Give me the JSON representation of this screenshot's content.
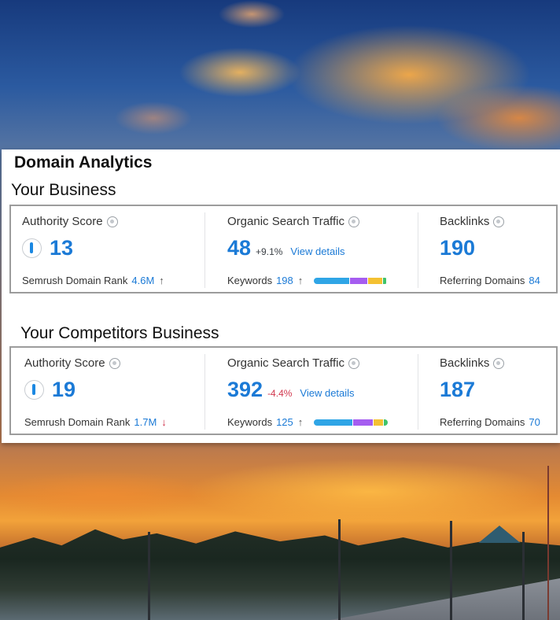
{
  "panel": {
    "title": "Domain Analytics"
  },
  "sections": [
    {
      "title": "Your Business",
      "authority": {
        "label": "Authority Score",
        "value": "13",
        "rank_label": "Semrush Domain Rank",
        "rank_value": "4.6M",
        "rank_trend": "up"
      },
      "organic": {
        "label": "Organic Search Traffic",
        "value": "48",
        "delta": "+9.1%",
        "link": "View details",
        "keywords_label": "Keywords",
        "keywords_value": "198",
        "keywords_trend": "up",
        "bar_segments": [
          {
            "color": "#2fa5e6",
            "share": 0.48
          },
          {
            "color": "#a55df0",
            "share": 0.23
          },
          {
            "color": "#f4c132",
            "share": 0.19
          },
          {
            "color": "#3fc36a",
            "share": 0.04
          }
        ]
      },
      "backlinks": {
        "label": "Backlinks",
        "value": "190",
        "ref_label": "Referring Domains",
        "ref_value": "84"
      }
    },
    {
      "title": "Your Competitors Business",
      "authority": {
        "label": "Authority Score",
        "value": "19",
        "rank_label": "Semrush Domain Rank",
        "rank_value": "1.7M",
        "rank_trend": "down"
      },
      "organic": {
        "label": "Organic Search Traffic",
        "value": "392",
        "delta": "-4.4%",
        "link": "View details",
        "keywords_label": "Keywords",
        "keywords_value": "125",
        "keywords_trend": "up",
        "bar_segments": [
          {
            "color": "#2fa5e6",
            "share": 0.52
          },
          {
            "color": "#a55df0",
            "share": 0.26
          },
          {
            "color": "#f4c132",
            "share": 0.13
          },
          {
            "color": "#3fc36a",
            "share": 0.05
          }
        ]
      },
      "backlinks": {
        "label": "Backlinks",
        "value": "187",
        "ref_label": "Referring Domains",
        "ref_value": "70"
      }
    }
  ],
  "colors": {
    "accent": "#1b7ad6",
    "negative": "#d1364d"
  },
  "icons": {
    "info": "info-circle-icon",
    "gauge": "authority-gauge-icon",
    "up": "arrow-up-icon",
    "down": "arrow-down-icon"
  }
}
